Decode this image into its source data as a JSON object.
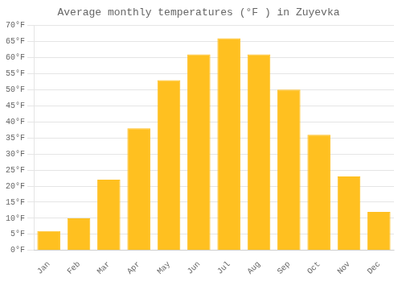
{
  "chart_data": {
    "type": "bar",
    "title": "Average monthly temperatures (°F ) in Zuyevka",
    "categories": [
      "Jan",
      "Feb",
      "Mar",
      "Apr",
      "May",
      "Jun",
      "Jul",
      "Aug",
      "Sep",
      "Oct",
      "Nov",
      "Dec"
    ],
    "values": [
      6,
      10,
      22,
      38,
      53,
      61,
      66,
      61,
      50,
      36,
      23,
      12
    ],
    "color": "#FFC020",
    "ylim": [
      0,
      70
    ],
    "yticks": [
      {
        "value": 0,
        "label": "0°F"
      },
      {
        "value": 5,
        "label": "5°F"
      },
      {
        "value": 10,
        "label": "10°F"
      },
      {
        "value": 15,
        "label": "15°F"
      },
      {
        "value": 20,
        "label": "20°F"
      },
      {
        "value": 25,
        "label": "25°F"
      },
      {
        "value": 30,
        "label": "30°F"
      },
      {
        "value": 35,
        "label": "35°F"
      },
      {
        "value": 40,
        "label": "40°F"
      },
      {
        "value": 45,
        "label": "45°F"
      },
      {
        "value": 50,
        "label": "50°F"
      },
      {
        "value": 55,
        "label": "55°F"
      },
      {
        "value": 60,
        "label": "60°F"
      },
      {
        "value": 65,
        "label": "65°F"
      },
      {
        "value": 70,
        "label": "70°F"
      }
    ],
    "grid": true
  }
}
